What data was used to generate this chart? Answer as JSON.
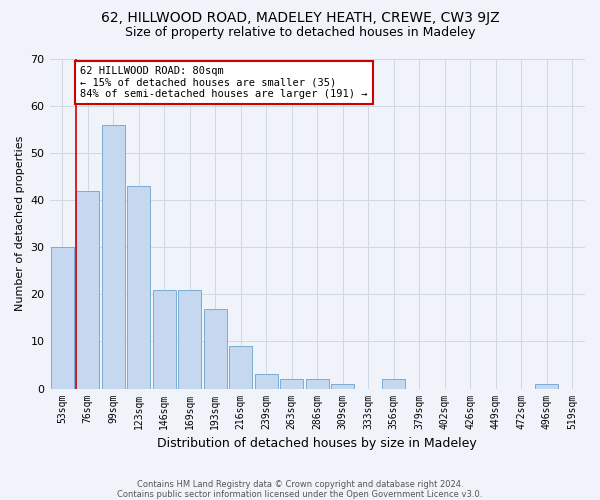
{
  "title": "62, HILLWOOD ROAD, MADELEY HEATH, CREWE, CW3 9JZ",
  "subtitle": "Size of property relative to detached houses in Madeley",
  "xlabel": "Distribution of detached houses by size in Madeley",
  "ylabel": "Number of detached properties",
  "categories": [
    "53sqm",
    "76sqm",
    "99sqm",
    "123sqm",
    "146sqm",
    "169sqm",
    "193sqm",
    "216sqm",
    "239sqm",
    "263sqm",
    "286sqm",
    "309sqm",
    "333sqm",
    "356sqm",
    "379sqm",
    "402sqm",
    "426sqm",
    "449sqm",
    "472sqm",
    "496sqm",
    "519sqm"
  ],
  "values": [
    30,
    42,
    56,
    43,
    21,
    21,
    17,
    9,
    3,
    2,
    2,
    1,
    0,
    2,
    0,
    0,
    0,
    0,
    0,
    1,
    0
  ],
  "bar_color": "#c5d8f0",
  "bar_edgecolor": "#7aadd4",
  "vline_color": "#cc0000",
  "annotation_line1": "62 HILLWOOD ROAD: 80sqm",
  "annotation_line2": "← 15% of detached houses are smaller (35)",
  "annotation_line3": "84% of semi-detached houses are larger (191) →",
  "annotation_box_edgecolor": "#cc0000",
  "annotation_box_facecolor": "#ffffff",
  "ylim": [
    0,
    70
  ],
  "yticks": [
    0,
    10,
    20,
    30,
    40,
    50,
    60,
    70
  ],
  "grid_color": "#d0d8e4",
  "background_color": "#f0f4fa",
  "footer_line1": "Contains HM Land Registry data © Crown copyright and database right 2024.",
  "footer_line2": "Contains public sector information licensed under the Open Government Licence v3.0.",
  "title_fontsize": 10,
  "subtitle_fontsize": 9,
  "ylabel_fontsize": 8,
  "xlabel_fontsize": 9,
  "tick_fontsize": 7,
  "annotation_fontsize": 7.5,
  "footer_fontsize": 6
}
